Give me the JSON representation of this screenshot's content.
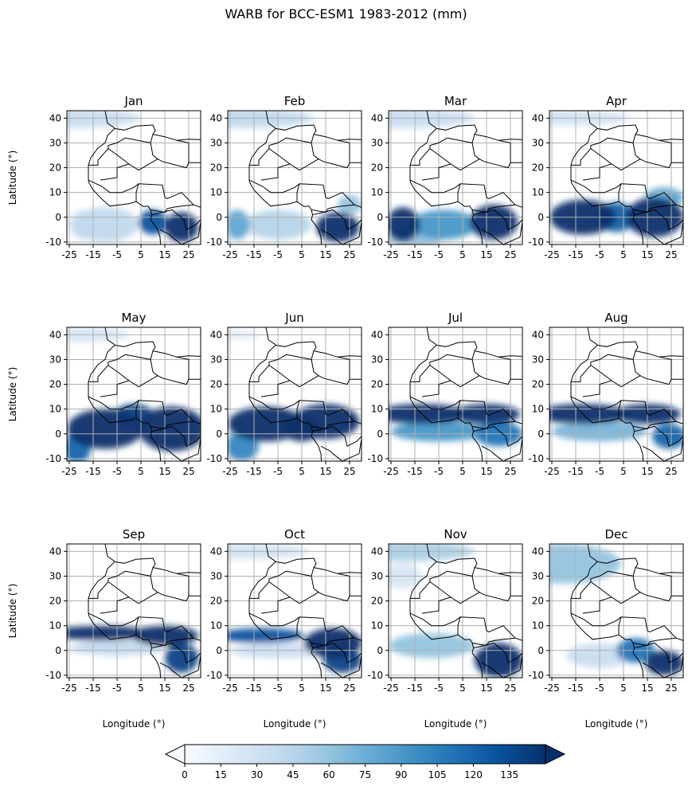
{
  "chart_data": {
    "type": "heatmap",
    "title": "WARB for BCC-ESM1 1983-2012 (mm)",
    "ylabel": "Latitude (°)",
    "xlabel": "Longitude (°)",
    "xticks": [
      -25,
      -15,
      -5,
      5,
      15,
      25
    ],
    "yticks": [
      -10,
      0,
      10,
      20,
      30,
      40
    ],
    "xlim": [
      -26,
      30
    ],
    "ylim": [
      -11,
      43
    ],
    "grid": true,
    "colormap": "Blues",
    "colors": [
      "#f7fbff",
      "#deebf7",
      "#c6dbef",
      "#9ecae1",
      "#6baed6",
      "#4292c6",
      "#2171b5",
      "#08519c",
      "#08306b"
    ],
    "colorbar": {
      "ticks": [
        0,
        15,
        30,
        45,
        60,
        75,
        90,
        105,
        120,
        135
      ],
      "min": 0,
      "max": 150,
      "extend": "both"
    },
    "panels": [
      {
        "month": "Jan",
        "blobs": [
          [
            -23,
            40,
            28,
            4,
            35
          ],
          [
            22,
            -4,
            7,
            6,
            150
          ],
          [
            10,
            -2,
            6,
            5,
            130
          ],
          [
            -10,
            -3,
            14,
            7,
            40
          ],
          [
            -20,
            -3,
            5,
            6,
            25
          ]
        ]
      },
      {
        "month": "Feb",
        "blobs": [
          [
            -20,
            40,
            30,
            4,
            40
          ],
          [
            20,
            -4,
            9,
            6,
            150
          ],
          [
            -22,
            -3,
            5,
            6,
            80
          ],
          [
            -5,
            -3,
            14,
            6,
            45
          ],
          [
            25,
            5,
            5,
            4,
            60
          ]
        ]
      },
      {
        "month": "Mar",
        "blobs": [
          [
            -20,
            40,
            30,
            4,
            35
          ],
          [
            -20,
            -3,
            7,
            7,
            150
          ],
          [
            18,
            -2,
            10,
            7,
            150
          ],
          [
            -3,
            -3,
            14,
            6,
            90
          ],
          [
            -15,
            -8,
            12,
            4,
            60
          ]
        ]
      },
      {
        "month": "Apr",
        "blobs": [
          [
            -20,
            40,
            28,
            3,
            30
          ],
          [
            -12,
            0,
            14,
            7,
            150
          ],
          [
            18,
            0,
            12,
            8,
            150
          ],
          [
            2,
            0,
            8,
            6,
            120
          ],
          [
            22,
            8,
            8,
            4,
            80
          ]
        ]
      },
      {
        "month": "May",
        "blobs": [
          [
            -20,
            40,
            20,
            3,
            25
          ],
          [
            -10,
            2,
            16,
            8,
            150
          ],
          [
            18,
            2,
            14,
            9,
            150
          ],
          [
            2,
            8,
            8,
            4,
            140
          ],
          [
            -22,
            -6,
            6,
            6,
            120
          ]
        ]
      },
      {
        "month": "Jun",
        "blobs": [
          [
            -22,
            40,
            10,
            2,
            15
          ],
          [
            -10,
            4,
            16,
            7,
            150
          ],
          [
            15,
            5,
            14,
            7,
            150
          ],
          [
            -20,
            -5,
            7,
            6,
            100
          ],
          [
            5,
            2,
            8,
            5,
            150
          ]
        ]
      },
      {
        "month": "Jul",
        "blobs": [
          [
            -12,
            8,
            20,
            4,
            150
          ],
          [
            15,
            8,
            14,
            4,
            150
          ],
          [
            -5,
            1,
            20,
            4,
            90
          ],
          [
            20,
            0,
            10,
            5,
            110
          ]
        ]
      },
      {
        "month": "Aug",
        "blobs": [
          [
            -12,
            8,
            20,
            4,
            150
          ],
          [
            15,
            8,
            14,
            4,
            150
          ],
          [
            -5,
            1,
            20,
            4,
            70
          ],
          [
            24,
            -1,
            7,
            5,
            120
          ]
        ]
      },
      {
        "month": "Sep",
        "blobs": [
          [
            -12,
            7,
            20,
            3,
            150
          ],
          [
            15,
            6,
            14,
            4,
            150
          ],
          [
            22,
            -3,
            7,
            6,
            140
          ],
          [
            -5,
            1,
            20,
            3,
            40
          ]
        ]
      },
      {
        "month": "Oct",
        "blobs": [
          [
            -20,
            40,
            28,
            3,
            30
          ],
          [
            -12,
            6,
            18,
            3,
            130
          ],
          [
            18,
            3,
            12,
            6,
            150
          ],
          [
            22,
            -4,
            8,
            5,
            140
          ],
          [
            -5,
            0,
            20,
            3,
            35
          ]
        ]
      },
      {
        "month": "Nov",
        "blobs": [
          [
            -20,
            40,
            30,
            4,
            50
          ],
          [
            20,
            -4,
            10,
            7,
            150
          ],
          [
            -8,
            2,
            18,
            5,
            60
          ],
          [
            -20,
            30,
            8,
            5,
            25
          ]
        ]
      },
      {
        "month": "Dec",
        "blobs": [
          [
            -20,
            35,
            24,
            8,
            60
          ],
          [
            22,
            -5,
            8,
            5,
            150
          ],
          [
            10,
            0,
            8,
            5,
            110
          ],
          [
            -5,
            -2,
            14,
            5,
            35
          ]
        ]
      }
    ]
  }
}
